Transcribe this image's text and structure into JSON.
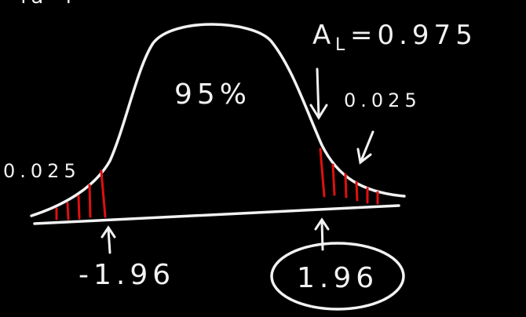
{
  "colors": {
    "background": "#000000",
    "ink": "#f2f2f2",
    "shade": "#e01010"
  },
  "labels": {
    "top_fragment": "ча ч",
    "area_left": "A",
    "area_left_sub": "L",
    "area_left_value": "=0.975",
    "center_percent": "95%",
    "right_tail": "0.025",
    "left_tail": "0.025",
    "z_left": "-1.96",
    "z_right": "1.96"
  }
}
